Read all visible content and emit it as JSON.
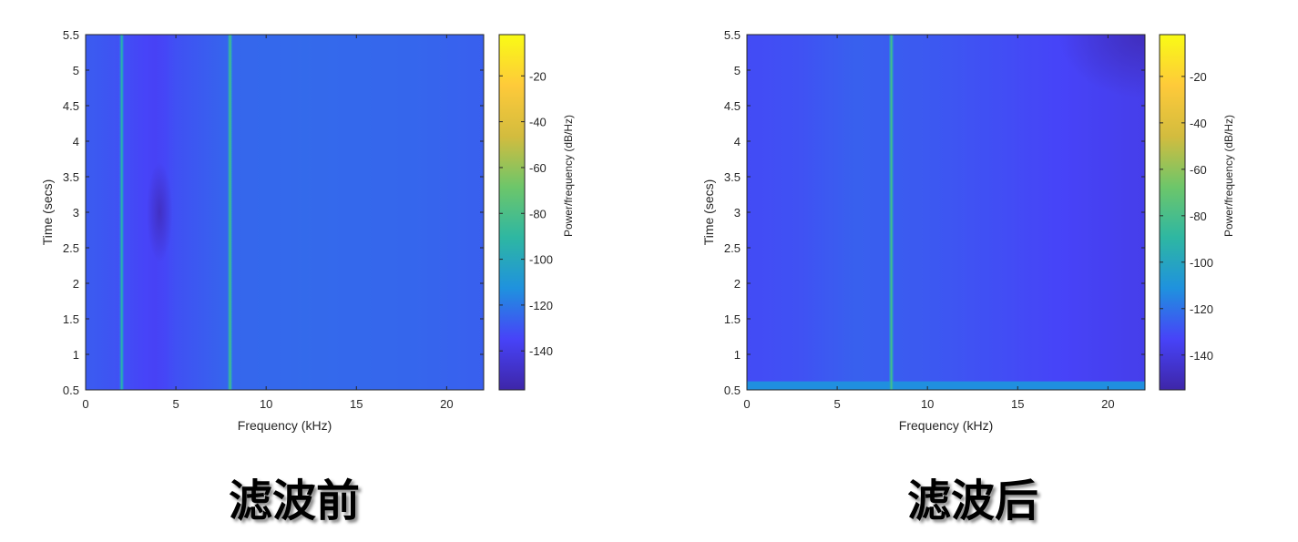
{
  "colormap_stops": [
    "#3e26a8",
    "#4743f8",
    "#1f92de",
    "#2eb7a2",
    "#6dc66a",
    "#d3bc3e",
    "#feca3a",
    "#f9fb15"
  ],
  "chart_data": [
    {
      "type": "heatmap",
      "caption": "滤波前",
      "xlabel": "Frequency (kHz)",
      "ylabel": "Time (secs)",
      "colorbar_label": "Power/frequency (dB/Hz)",
      "xlim": [
        0,
        22.05
      ],
      "ylim": [
        0.5,
        5.5
      ],
      "xticks": [
        "0",
        "5",
        "10",
        "15",
        "20"
      ],
      "xtick_values": [
        0,
        5,
        10,
        15,
        20
      ],
      "yticks": [
        "0.5",
        "1",
        "1.5",
        "2",
        "2.5",
        "3",
        "3.5",
        "4",
        "4.5",
        "5",
        "5.5"
      ],
      "ytick_values": [
        0.5,
        1,
        1.5,
        2,
        2.5,
        3,
        3.5,
        4,
        4.5,
        5,
        5.5
      ],
      "clim": [
        -157,
        -2
      ],
      "cticks": [
        "-20",
        "-40",
        "-60",
        "-80",
        "-100",
        "-120",
        "-140"
      ],
      "ctick_values": [
        -20,
        -40,
        -60,
        -80,
        -100,
        -120,
        -140
      ],
      "background_level_db": [
        {
          "freq_khz": 0,
          "db": -128
        },
        {
          "freq_khz": 1.5,
          "db": -130
        },
        {
          "freq_khz": 3,
          "db": -134
        },
        {
          "freq_khz": 4,
          "db": -136
        },
        {
          "freq_khz": 5,
          "db": -131
        },
        {
          "freq_khz": 8,
          "db": -125
        },
        {
          "freq_khz": 12,
          "db": -124
        },
        {
          "freq_khz": 18,
          "db": -125
        },
        {
          "freq_khz": 22.05,
          "db": -127
        }
      ],
      "tones": [
        {
          "freq_khz": 2.0,
          "db": -95
        },
        {
          "freq_khz": 8.0,
          "db": -82
        }
      ],
      "dips": [
        {
          "freq_khz": 4.1,
          "time_secs": 3.0,
          "db": -150
        }
      ]
    },
    {
      "type": "heatmap",
      "caption": "滤波后",
      "xlabel": "Frequency (kHz)",
      "ylabel": "Time (secs)",
      "colorbar_label": "Power/frequency (dB/Hz)",
      "xlim": [
        0,
        22.05
      ],
      "ylim": [
        0.5,
        5.5
      ],
      "xticks": [
        "0",
        "5",
        "10",
        "15",
        "20"
      ],
      "xtick_values": [
        0,
        5,
        10,
        15,
        20
      ],
      "yticks": [
        "0.5",
        "1",
        "1.5",
        "2",
        "2.5",
        "3",
        "3.5",
        "4",
        "4.5",
        "5",
        "5.5"
      ],
      "ytick_values": [
        0.5,
        1,
        1.5,
        2,
        2.5,
        3,
        3.5,
        4,
        4.5,
        5,
        5.5
      ],
      "clim": [
        -155,
        -2
      ],
      "cticks": [
        "-20",
        "-40",
        "-60",
        "-80",
        "-100",
        "-120",
        "-140"
      ],
      "ctick_values": [
        -20,
        -40,
        -60,
        -80,
        -100,
        -120,
        -140
      ],
      "background_level_db": [
        {
          "freq_khz": 0,
          "db": -131
        },
        {
          "freq_khz": 3,
          "db": -129
        },
        {
          "freq_khz": 6,
          "db": -125
        },
        {
          "freq_khz": 10,
          "db": -127
        },
        {
          "freq_khz": 15,
          "db": -131
        },
        {
          "freq_khz": 22.05,
          "db": -137
        }
      ],
      "tones": [
        {
          "freq_khz": 8.0,
          "db": -82
        }
      ],
      "dips": [
        {
          "freq_khz": 22.05,
          "time_secs": 5.5,
          "db": -150
        }
      ],
      "bottom_band": {
        "time_secs": [
          0.5,
          0.62
        ],
        "db": -112
      }
    }
  ]
}
